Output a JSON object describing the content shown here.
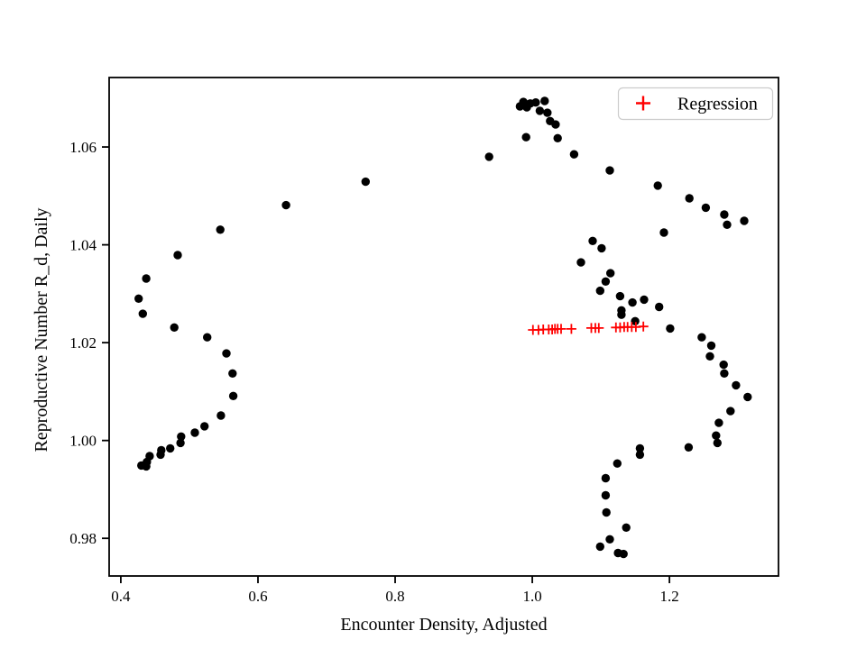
{
  "figure": {
    "background": "#ffffff"
  },
  "chart_data": {
    "type": "scatter",
    "title": "",
    "xlabel": "Encounter Density, Adjusted",
    "ylabel": "Reproductive Number R_d, Daily",
    "xlim": [
      0.383,
      1.359
    ],
    "ylim": [
      0.9723,
      1.0742
    ],
    "grid": false,
    "x_ticks": {
      "values": [
        0.4,
        0.6,
        0.8,
        1.0,
        1.2
      ],
      "labels": [
        "0.4",
        "0.6",
        "0.8",
        "1.0",
        "1.2"
      ]
    },
    "y_ticks": {
      "values": [
        0.98,
        1.0,
        1.02,
        1.04,
        1.06
      ],
      "labels": [
        "0.98",
        "1.00",
        "1.02",
        "1.04",
        "1.06"
      ]
    },
    "legend": {
      "position": "upper right",
      "entries": [
        {
          "label": "Regression",
          "marker": "plus",
          "color": "#ff0000"
        }
      ]
    },
    "colors": {
      "observations": "#000000",
      "regression": "#ff0000",
      "spine": "#000000",
      "legend_border": "#cccccc"
    },
    "series": [
      {
        "name": "observations",
        "marker": "circle",
        "color": "#000000",
        "marker_radius": 4.7,
        "points": [
          [
            0.43,
            0.9949
          ],
          [
            0.437,
            0.9947
          ],
          [
            0.438,
            0.9956
          ],
          [
            0.442,
            0.9968
          ],
          [
            0.458,
            0.9971
          ],
          [
            0.459,
            0.998
          ],
          [
            0.472,
            0.9984
          ],
          [
            0.487,
            0.9995
          ],
          [
            0.488,
            1.0008
          ],
          [
            0.508,
            1.0016
          ],
          [
            0.522,
            1.0029
          ],
          [
            0.546,
            1.0051
          ],
          [
            0.564,
            1.0091
          ],
          [
            0.563,
            1.0137
          ],
          [
            0.554,
            1.0178
          ],
          [
            0.526,
            1.0211
          ],
          [
            0.478,
            1.0231
          ],
          [
            0.432,
            1.0259
          ],
          [
            0.426,
            1.029
          ],
          [
            0.437,
            1.0331
          ],
          [
            0.483,
            1.0379
          ],
          [
            0.545,
            1.0431
          ],
          [
            0.641,
            1.0481
          ],
          [
            0.757,
            1.0529
          ],
          [
            0.937,
            1.058
          ],
          [
            0.982,
            1.0683
          ],
          [
            0.987,
            1.0692
          ],
          [
            0.991,
            1.062
          ],
          [
            0.992,
            1.0681
          ],
          [
            0.997,
            1.0689
          ],
          [
            1.005,
            1.0691
          ],
          [
            1.011,
            1.0674
          ],
          [
            1.018,
            1.0694
          ],
          [
            1.022,
            1.067
          ],
          [
            1.026,
            1.0653
          ],
          [
            1.034,
            1.0646
          ],
          [
            1.037,
            1.0618
          ],
          [
            1.061,
            1.0585
          ],
          [
            1.113,
            1.0552
          ],
          [
            1.183,
            1.0521
          ],
          [
            1.229,
            1.0495
          ],
          [
            1.192,
            1.0425
          ],
          [
            1.253,
            1.0476
          ],
          [
            1.28,
            1.0462
          ],
          [
            1.284,
            1.0441
          ],
          [
            1.309,
            1.0449
          ],
          [
            1.088,
            1.0408
          ],
          [
            1.101,
            1.0393
          ],
          [
            1.071,
            1.0364
          ],
          [
            1.114,
            1.0342
          ],
          [
            1.107,
            1.0325
          ],
          [
            1.099,
            1.0306
          ],
          [
            1.128,
            1.0295
          ],
          [
            1.146,
            1.0282
          ],
          [
            1.163,
            1.0288
          ],
          [
            1.185,
            1.0273
          ],
          [
            1.13,
            1.0266
          ],
          [
            1.13,
            1.0257
          ],
          [
            1.15,
            1.0244
          ],
          [
            1.201,
            1.0229
          ],
          [
            1.247,
            1.0211
          ],
          [
            1.261,
            1.0194
          ],
          [
            1.259,
            1.0172
          ],
          [
            1.279,
            1.0155
          ],
          [
            1.28,
            1.0137
          ],
          [
            1.297,
            1.0113
          ],
          [
            1.314,
            1.0089
          ],
          [
            1.289,
            1.006
          ],
          [
            1.272,
            1.0036
          ],
          [
            1.268,
            1.001
          ],
          [
            1.27,
            0.9995
          ],
          [
            1.228,
            0.9986
          ],
          [
            1.157,
            0.9984
          ],
          [
            1.157,
            0.9971
          ],
          [
            1.124,
            0.9953
          ],
          [
            1.107,
            0.9923
          ],
          [
            1.107,
            0.9888
          ],
          [
            1.108,
            0.9853
          ],
          [
            1.137,
            0.9822
          ],
          [
            1.113,
            0.9798
          ],
          [
            1.099,
            0.9783
          ],
          [
            1.125,
            0.977
          ],
          [
            1.133,
            0.9768
          ]
        ]
      },
      {
        "name": "Regression",
        "marker": "plus",
        "color": "#ff0000",
        "marker_half_size": 5.5,
        "points": [
          [
            1.001,
            1.0226
          ],
          [
            1.009,
            1.0226
          ],
          [
            1.016,
            1.0227
          ],
          [
            1.024,
            1.0227
          ],
          [
            1.029,
            1.0227
          ],
          [
            1.033,
            1.0228
          ],
          [
            1.037,
            1.0228
          ],
          [
            1.042,
            1.0228
          ],
          [
            1.057,
            1.0228
          ],
          [
            1.086,
            1.023
          ],
          [
            1.092,
            1.023
          ],
          [
            1.097,
            1.023
          ],
          [
            1.122,
            1.0231
          ],
          [
            1.128,
            1.0231
          ],
          [
            1.134,
            1.0232
          ],
          [
            1.139,
            1.0232
          ],
          [
            1.145,
            1.0232
          ],
          [
            1.151,
            1.0232
          ],
          [
            1.162,
            1.0233
          ]
        ]
      }
    ]
  }
}
